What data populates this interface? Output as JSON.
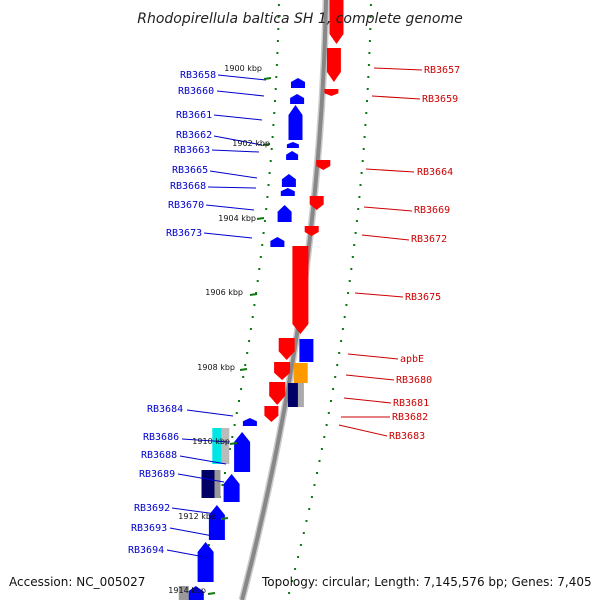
{
  "title": "Rhodopirellula baltica SH 1, complete genome",
  "accession": "Accession: NC_005027",
  "topology": "Topology: circular; Length: 7,145,576 bp; Genes: 7,405",
  "colors": {
    "forward": "#ff0000",
    "reverse": "#0000ff",
    "dark": "#000066",
    "cyan": "#00e5e5",
    "orange": "#ff9900",
    "tick": "#117711",
    "backbone": "#888888"
  },
  "kbp_ticks": [
    "1900 kbp",
    "1902 kbp",
    "1904 kbp",
    "1906 kbp",
    "1908 kbp",
    "1910 kbp",
    "1912 kbp",
    "1914 kbp"
  ],
  "left_genes": [
    "RB3658",
    "RB3660",
    "RB3661",
    "RB3662",
    "RB3663",
    "RB3665",
    "RB3668",
    "RB3670",
    "RB3673",
    "RB3684",
    "RB3686",
    "RB3688",
    "RB3689",
    "RB3692",
    "RB3693",
    "RB3694"
  ],
  "right_genes": [
    "RB3657",
    "RB3659",
    "RB3664",
    "RB3669",
    "RB3672",
    "RB3675",
    "apbE",
    "RB3680",
    "RB3681",
    "RB3682",
    "RB3683"
  ]
}
